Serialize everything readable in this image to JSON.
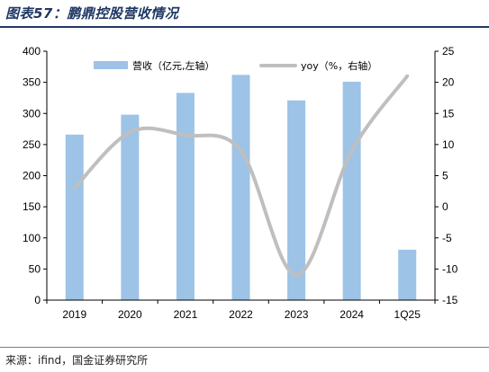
{
  "header": {
    "title": "图表57：鹏鼎控股营收情况"
  },
  "footer": {
    "source": "来源：ifind，国金证券研究所"
  },
  "chart_data": {
    "type": "bar",
    "categories": [
      "2019",
      "2020",
      "2021",
      "2022",
      "2023",
      "2024",
      "1Q25"
    ],
    "series": [
      {
        "name": "营收（亿元,左轴）",
        "kind": "bar",
        "axis": "left",
        "color": "#9dc3e6",
        "values": [
          266,
          298,
          333,
          362,
          321,
          351,
          81
        ]
      },
      {
        "name": "yoy（%，右轴）",
        "kind": "line",
        "axis": "right",
        "color": "#bfbfbf",
        "values": [
          3,
          12,
          11.5,
          9,
          -11,
          9,
          21
        ]
      }
    ],
    "y_left": {
      "min": 0,
      "max": 400,
      "ticks": [
        0,
        50,
        100,
        150,
        200,
        250,
        300,
        350,
        400
      ]
    },
    "y_right": {
      "min": -15,
      "max": 25,
      "ticks": [
        -15,
        -10,
        -5,
        0,
        5,
        10,
        15,
        20,
        25
      ]
    },
    "grid": false,
    "legend": "top"
  }
}
